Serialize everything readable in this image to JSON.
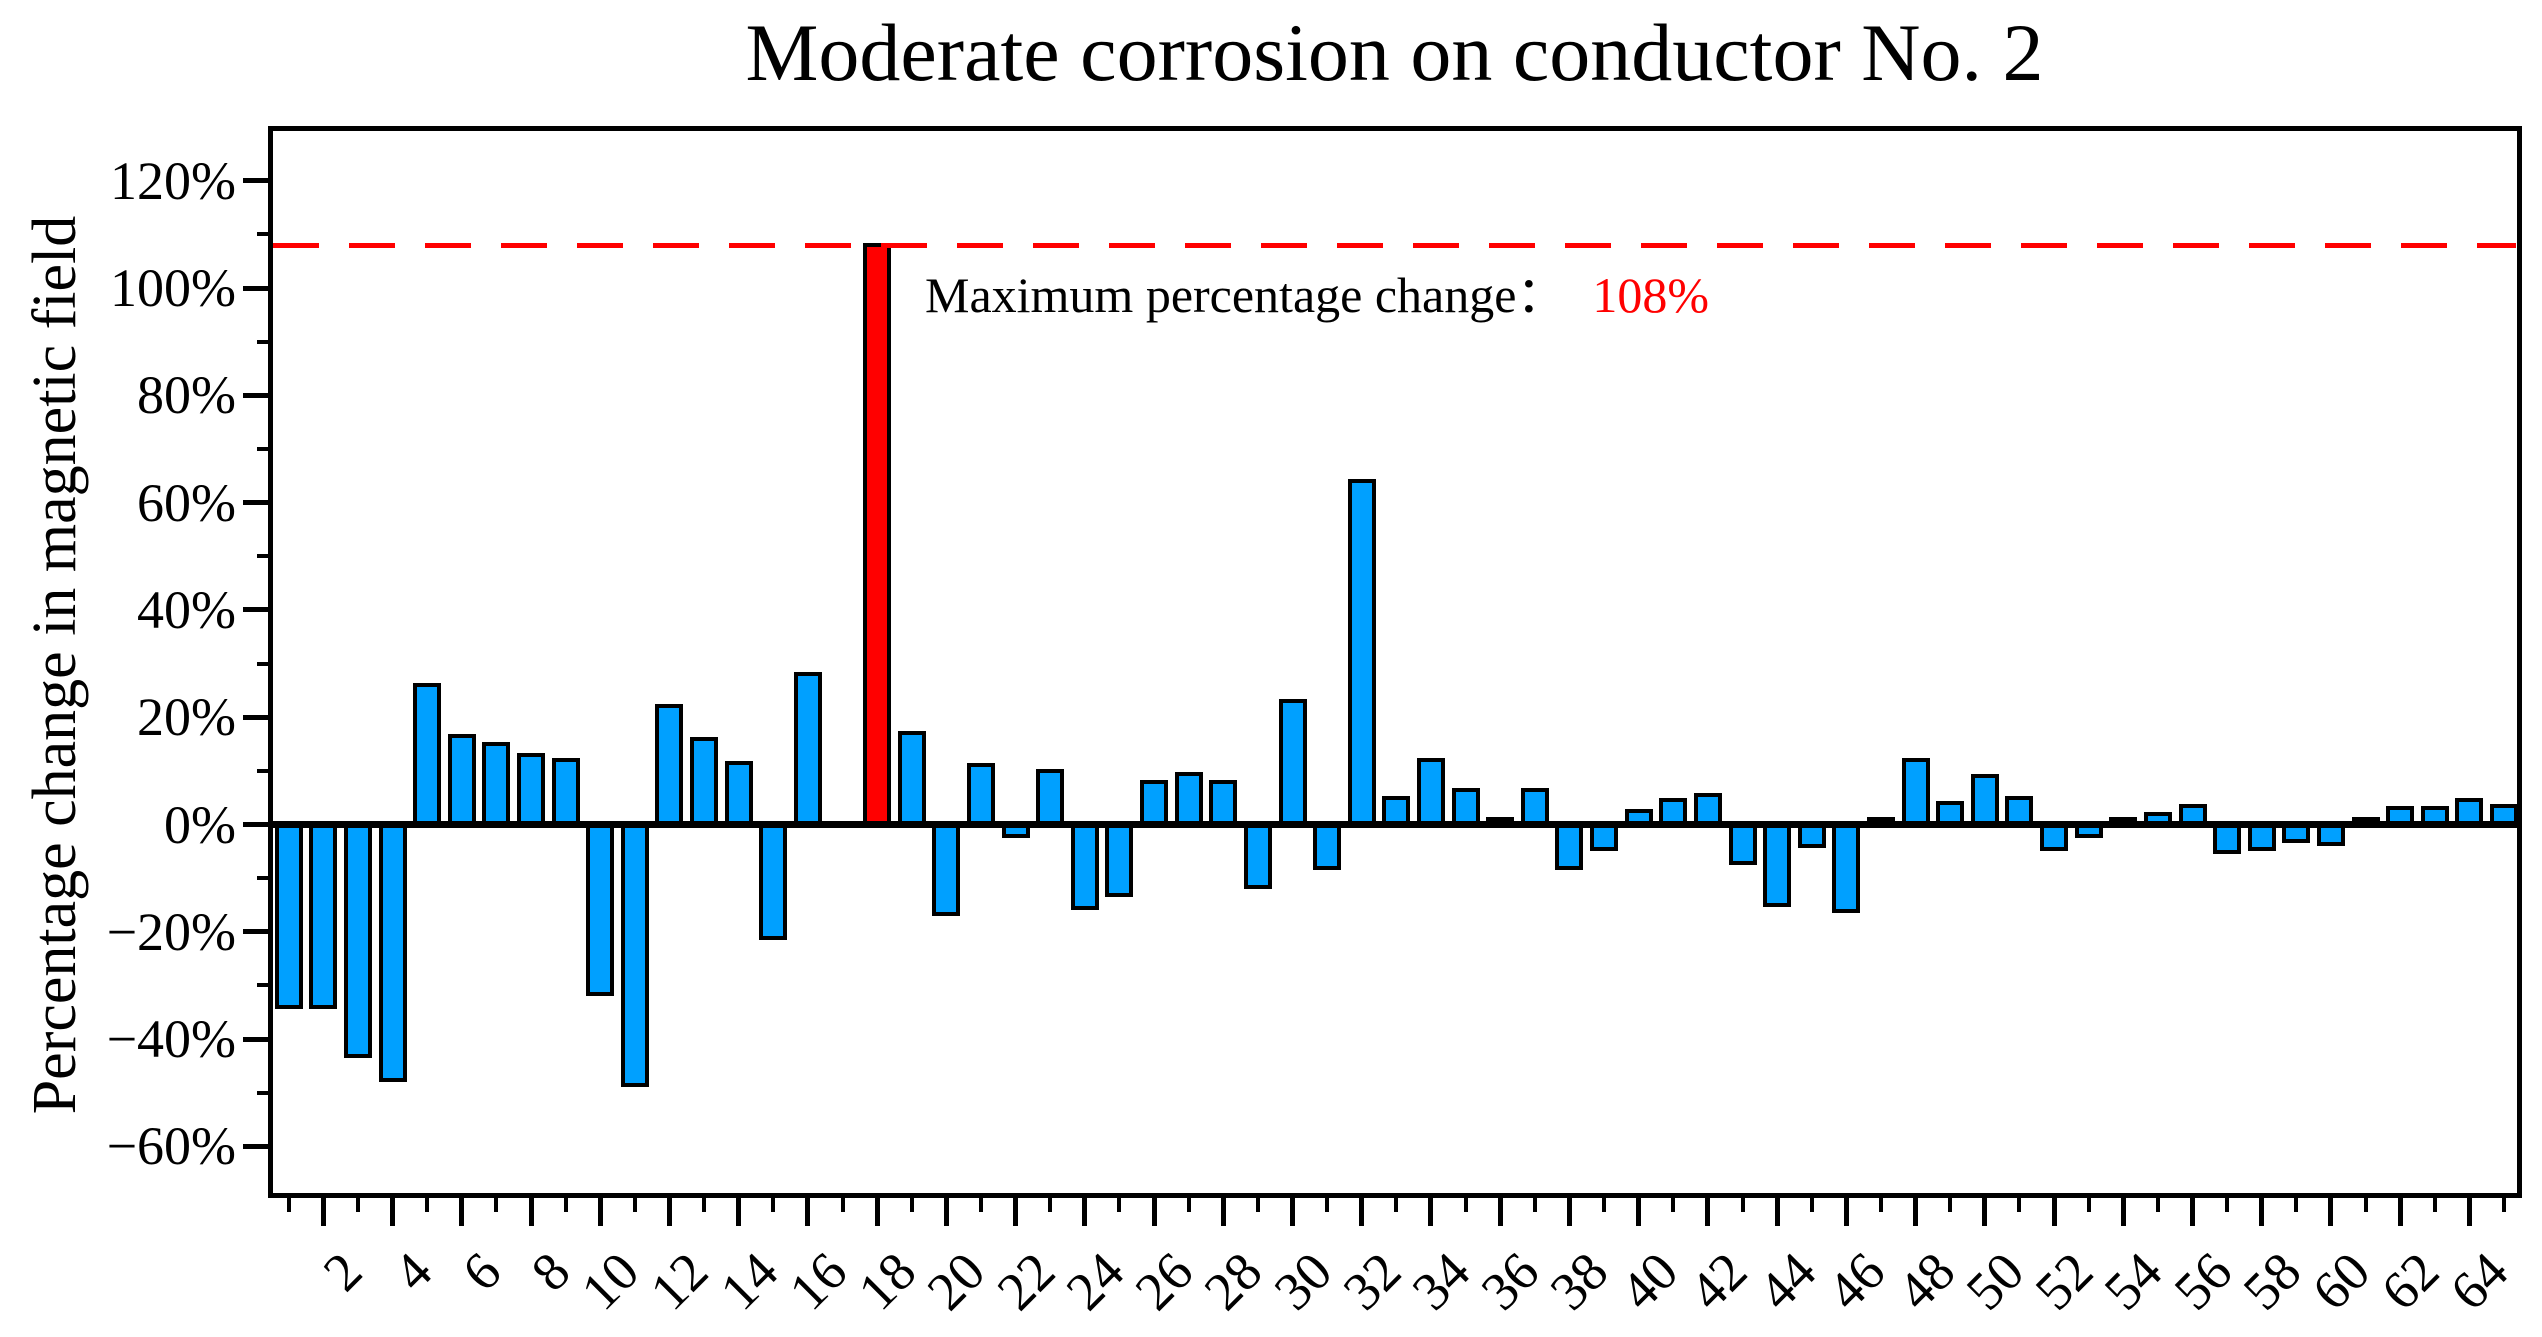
{
  "title": "Moderate corrosion on conductor No. 2",
  "chart_data": {
    "type": "bar",
    "title": "Moderate corrosion on conductor No. 2",
    "xlabel": "",
    "ylabel": "Percentage change in magnetic field",
    "x": [
      1,
      2,
      3,
      4,
      5,
      6,
      7,
      8,
      9,
      10,
      11,
      12,
      13,
      14,
      15,
      16,
      17,
      18,
      19,
      20,
      21,
      22,
      23,
      24,
      25,
      26,
      27,
      28,
      29,
      30,
      31,
      32,
      33,
      34,
      35,
      36,
      37,
      38,
      39,
      40,
      41,
      42,
      43,
      44,
      45,
      46,
      47,
      48,
      49,
      50,
      51,
      52,
      53,
      54,
      55,
      56,
      57,
      58,
      59,
      60,
      61,
      62,
      63,
      64,
      65
    ],
    "values": [
      -34,
      -34,
      -43,
      -47.5,
      26,
      16.5,
      15,
      13,
      12,
      -31.5,
      -48.5,
      22,
      16,
      11.5,
      -21,
      28,
      0,
      108,
      17,
      -16.5,
      11,
      -2,
      10,
      -15.5,
      -13,
      8,
      9.5,
      8,
      -11.5,
      23,
      -8,
      64,
      5,
      12,
      6.5,
      1,
      6.5,
      -8,
      -4.5,
      2.5,
      4.5,
      5.5,
      -7,
      -15,
      -4,
      -16,
      1,
      12,
      4,
      9,
      5,
      -4.5,
      -2,
      1,
      2,
      3.5,
      -5,
      -4.5,
      -3,
      -3.5,
      1,
      3,
      3,
      4.5,
      3.5
    ],
    "unit": "%",
    "bar_color": "#00A0FF",
    "bar_outline_color": "#000000",
    "highlight_index": 18,
    "highlight_color": "#FF0000",
    "ylim": [
      -69,
      130
    ],
    "grid": false,
    "yticks": [
      {
        "v": 120,
        "label": "120%"
      },
      {
        "v": 100,
        "label": "100%"
      },
      {
        "v": 80,
        "label": "80%"
      },
      {
        "v": 60,
        "label": "60%"
      },
      {
        "v": 40,
        "label": "40%"
      },
      {
        "v": 20,
        "label": "20%"
      },
      {
        "v": 0,
        "label": "0%"
      },
      {
        "v": -20,
        "label": "−20%"
      },
      {
        "v": -40,
        "label": "−40%"
      },
      {
        "v": -60,
        "label": "−60%"
      }
    ],
    "yticks_minor": [
      110,
      90,
      70,
      50,
      30,
      10,
      -10,
      -30,
      -50
    ],
    "xtick_major_labels": [
      "2",
      "4",
      "6",
      "8",
      "10",
      "12",
      "14",
      "16",
      "18",
      "20",
      "22",
      "24",
      "26",
      "28",
      "30",
      "32",
      "34",
      "36",
      "38",
      "40",
      "42",
      "44",
      "46",
      "48",
      "50",
      "52",
      "54",
      "56",
      "58",
      "60",
      "62",
      "64"
    ],
    "threshold_line": {
      "value": 108,
      "color": "#FF0000",
      "style": "dashed"
    },
    "annotation": {
      "text_black": "Maximum percentage change：",
      "text_red": "108%",
      "red_color": "#FF0000"
    }
  }
}
